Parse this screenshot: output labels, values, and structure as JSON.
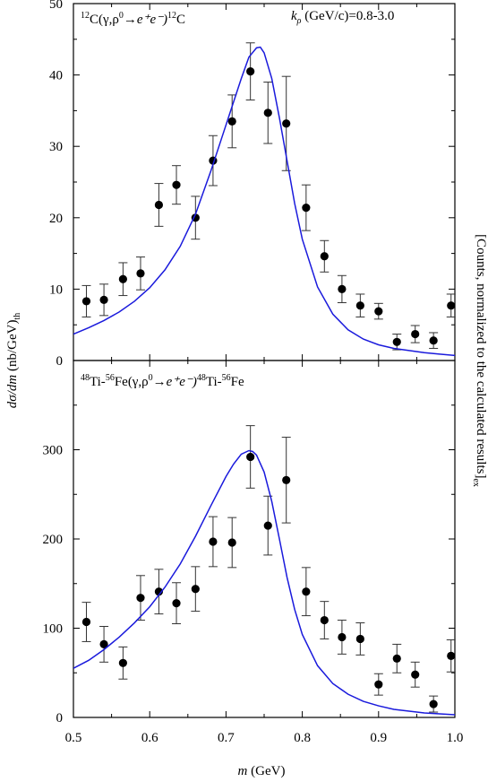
{
  "chart_data": [
    {
      "type": "scatter",
      "panel": "top",
      "annotation_left": {
        "pre": "12",
        "main": "C(γ,ρ",
        "sup0": "0",
        "arrow": "→",
        "rest": "e⁺e⁻)",
        "post_sup": "12",
        "post": "C"
      },
      "annotation_right": {
        "k": "k",
        "sub": "ρ",
        "text": " (GeV/c)=0.8-3.0"
      },
      "xlim": [
        0.5,
        1.0
      ],
      "ylim": [
        0,
        50
      ],
      "y_ticks": [
        0,
        10,
        20,
        30,
        40,
        50
      ],
      "series": [
        {
          "kind": "points",
          "x": [
            0.517,
            0.54,
            0.565,
            0.588,
            0.612,
            0.635,
            0.66,
            0.683,
            0.708,
            0.732,
            0.755,
            0.779,
            0.805,
            0.829,
            0.852,
            0.876,
            0.9,
            0.924,
            0.948,
            0.972,
            0.995
          ],
          "y": [
            8.3,
            8.5,
            11.4,
            12.2,
            21.8,
            24.6,
            20.0,
            28.0,
            33.5,
            40.5,
            34.7,
            33.2,
            21.4,
            14.6,
            10.0,
            7.7,
            6.9,
            2.6,
            3.7,
            2.8,
            7.7
          ],
          "err": [
            2.2,
            2.2,
            2.3,
            2.3,
            3.0,
            2.7,
            3.0,
            3.5,
            3.7,
            4.0,
            4.3,
            6.6,
            3.2,
            2.2,
            1.9,
            1.6,
            1.1,
            1.1,
            1.2,
            1.1,
            1.6
          ]
        },
        {
          "kind": "curve",
          "x": [
            0.5,
            0.52,
            0.54,
            0.56,
            0.58,
            0.6,
            0.62,
            0.64,
            0.66,
            0.68,
            0.7,
            0.72,
            0.73,
            0.74,
            0.745,
            0.75,
            0.76,
            0.77,
            0.78,
            0.79,
            0.8,
            0.82,
            0.84,
            0.86,
            0.88,
            0.9,
            0.92,
            0.94,
            0.96,
            0.98,
            1.0
          ],
          "y": [
            3.7,
            4.6,
            5.6,
            6.8,
            8.3,
            10.2,
            12.7,
            16.0,
            20.5,
            26.5,
            33.0,
            39.5,
            42.5,
            43.8,
            43.9,
            43.1,
            39.5,
            34.0,
            28.0,
            22.0,
            17.0,
            10.3,
            6.5,
            4.3,
            3.0,
            2.2,
            1.7,
            1.4,
            1.1,
            0.9,
            0.7
          ]
        }
      ]
    },
    {
      "type": "scatter",
      "panel": "bottom",
      "annotation_left": {
        "pre1": "48",
        "t1": "Ti-",
        "pre2": "56",
        "t2": "Fe(γ,ρ",
        "sup0": "0",
        "arrow": "→",
        "rest": "e⁺e⁻)",
        "pre3": "48",
        "t3": "Ti-",
        "pre4": "56",
        "t4": "Fe"
      },
      "xlim": [
        0.5,
        1.0
      ],
      "ylim": [
        0,
        400
      ],
      "y_ticks": [
        0,
        100,
        200,
        300
      ],
      "x_ticks": [
        "0.5",
        "0.6",
        "0.7",
        "0.8",
        "0.9",
        "1.0"
      ],
      "x_tick_values": [
        0.5,
        0.6,
        0.7,
        0.8,
        0.9,
        1.0
      ],
      "xlabel": {
        "var": "m",
        "unit": " (GeV)"
      },
      "series": [
        {
          "kind": "points",
          "x": [
            0.517,
            0.54,
            0.565,
            0.588,
            0.612,
            0.635,
            0.66,
            0.683,
            0.708,
            0.732,
            0.755,
            0.779,
            0.805,
            0.829,
            0.852,
            0.876,
            0.9,
            0.924,
            0.948,
            0.972,
            0.995
          ],
          "y": [
            107,
            82,
            61,
            134,
            141,
            128,
            144,
            197,
            196,
            292,
            215,
            266,
            141,
            109,
            90,
            88,
            37,
            66,
            48,
            15,
            69
          ],
          "err": [
            22,
            20,
            18,
            25,
            25,
            23,
            25,
            28,
            28,
            35,
            33,
            48,
            27,
            21,
            19,
            18,
            12,
            16,
            14,
            9,
            18
          ]
        },
        {
          "kind": "curve",
          "x": [
            0.5,
            0.52,
            0.54,
            0.56,
            0.58,
            0.6,
            0.62,
            0.64,
            0.66,
            0.68,
            0.7,
            0.71,
            0.72,
            0.73,
            0.735,
            0.74,
            0.75,
            0.76,
            0.77,
            0.78,
            0.79,
            0.8,
            0.82,
            0.84,
            0.86,
            0.88,
            0.9,
            0.92,
            0.94,
            0.96,
            0.98,
            1.0
          ],
          "y": [
            55,
            64,
            76,
            90,
            106,
            124,
            146,
            172,
            203,
            237,
            270,
            284,
            295,
            299,
            298,
            294,
            275,
            242,
            200,
            157,
            121,
            93,
            58,
            38,
            26,
            18,
            13,
            9,
            7,
            5,
            4,
            3
          ]
        }
      ]
    }
  ],
  "ylabel_left": {
    "main": "dσ/dm",
    "unit": " (nb/GeV)",
    "sub": "th"
  },
  "ylabel_right": {
    "main": "[Counts, normalized to the calculated results]",
    "sub": "ex"
  },
  "colors": {
    "curve": "#1a1adc",
    "points": "#000000",
    "axes": "#000000"
  }
}
